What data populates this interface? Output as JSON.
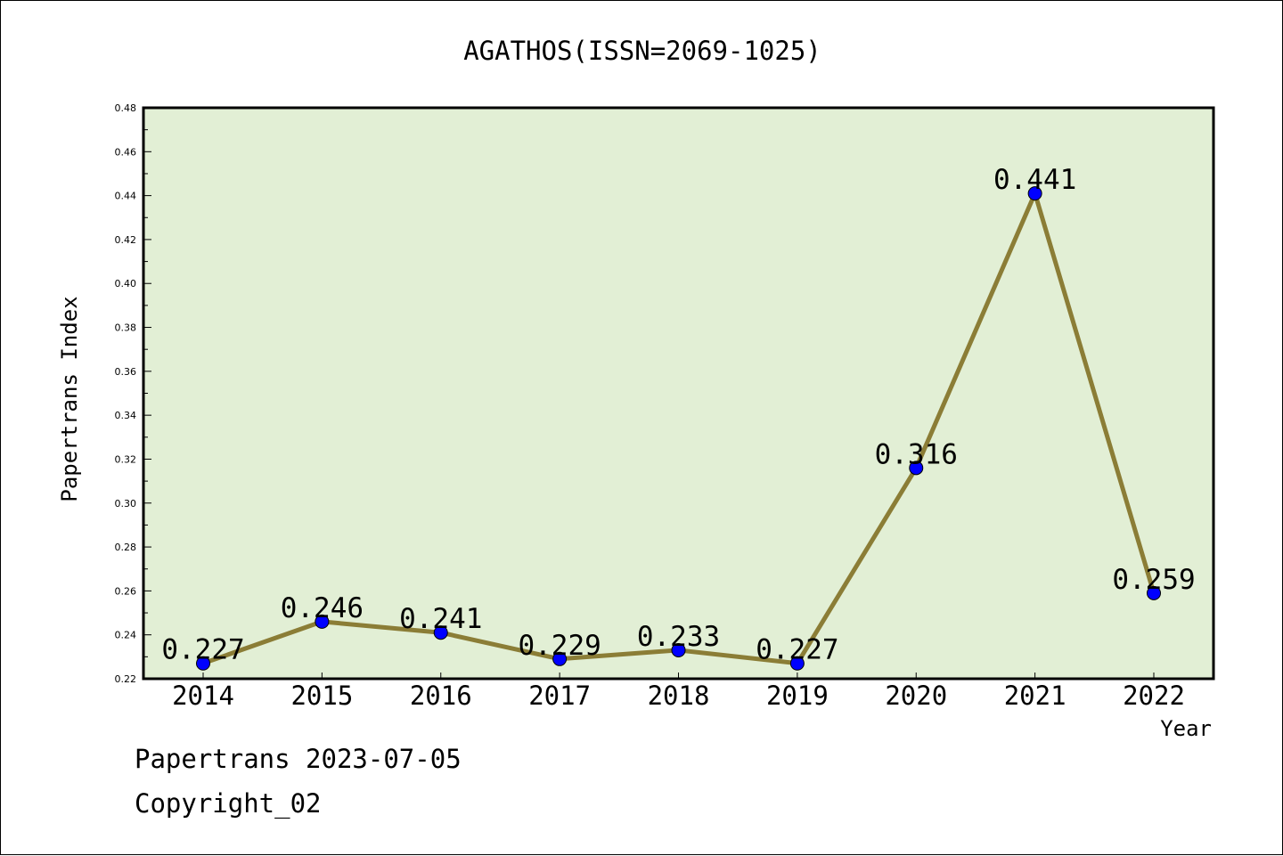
{
  "chart_data": {
    "type": "line",
    "title": "AGATHOS(ISSN=2069-1025)",
    "xlabel": "Year",
    "ylabel": "Papertrans Index",
    "categories": [
      "2014",
      "2015",
      "2016",
      "2017",
      "2018",
      "2019",
      "2020",
      "2021",
      "2022"
    ],
    "values": [
      0.227,
      0.246,
      0.241,
      0.229,
      0.233,
      0.227,
      0.316,
      0.441,
      0.259
    ],
    "data_labels": [
      "0.227",
      "0.246",
      "0.241",
      "0.229",
      "0.233",
      "0.227",
      "0.316",
      "0.441",
      "0.259"
    ],
    "ylim": [
      0.22,
      0.48
    ],
    "y_ticks": [
      "0.22",
      "0.24",
      "0.26",
      "0.28",
      "0.30",
      "0.32",
      "0.34",
      "0.36",
      "0.38",
      "0.40",
      "0.42",
      "0.44",
      "0.46",
      "0.48"
    ],
    "grid": false,
    "legend": "none",
    "colors": {
      "plot_background": "#e2efd5",
      "line": "#8b7d36",
      "marker": "#0000ff",
      "axis": "#000000"
    }
  },
  "footer": {
    "source": "Papertrans 2023-07-05",
    "copyright": "Copyright_02"
  }
}
